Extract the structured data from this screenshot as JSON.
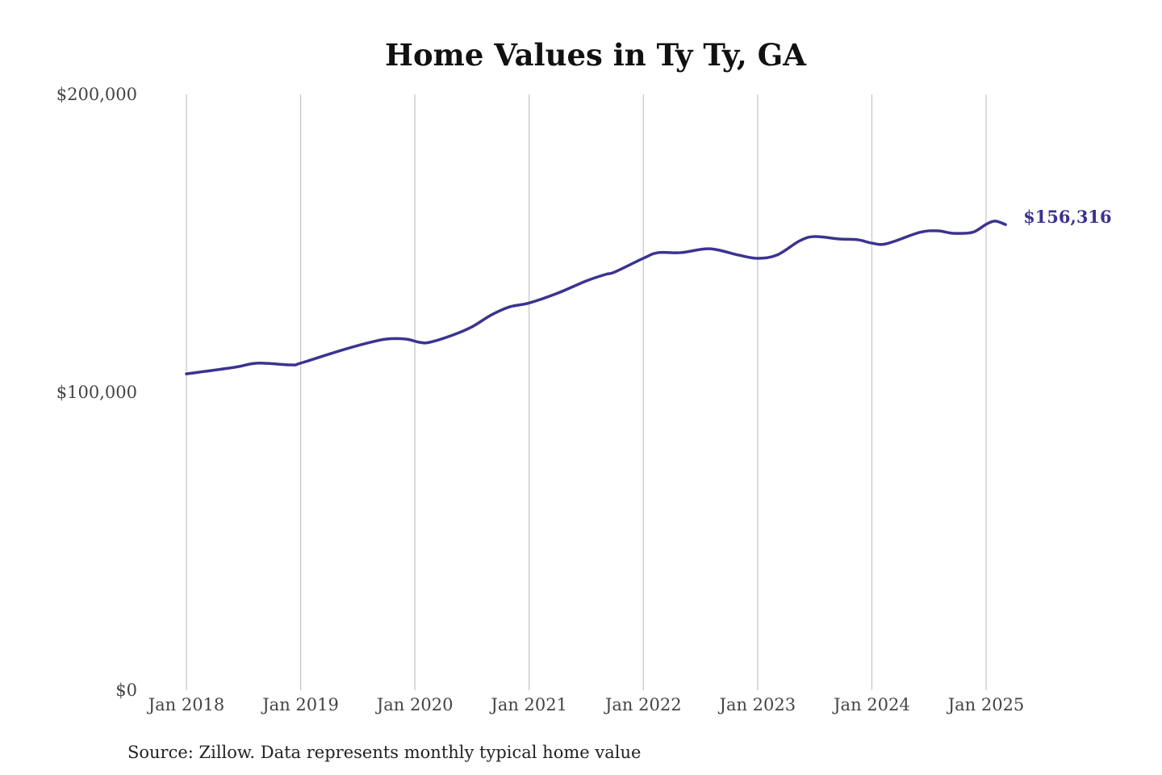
{
  "chart_data": {
    "type": "line",
    "title": "Home Values in Ty Ty, GA",
    "xlabel": "",
    "ylabel": "",
    "source": "Source: Zillow. Data represents monthly typical home value",
    "ylim": [
      0,
      200000
    ],
    "xlim": [
      2018.0,
      2025.17
    ],
    "y_ticks": [
      {
        "value": 0,
        "label": "$0"
      },
      {
        "value": 100000,
        "label": "$100,000"
      },
      {
        "value": 200000,
        "label": "$200,000"
      }
    ],
    "x_ticks": [
      {
        "value": 2018,
        "label": "Jan 2018"
      },
      {
        "value": 2019,
        "label": "Jan 2019"
      },
      {
        "value": 2020,
        "label": "Jan 2020"
      },
      {
        "value": 2021,
        "label": "Jan 2021"
      },
      {
        "value": 2022,
        "label": "Jan 2022"
      },
      {
        "value": 2023,
        "label": "Jan 2023"
      },
      {
        "value": 2024,
        "label": "Jan 2024"
      },
      {
        "value": 2025,
        "label": "Jan 2025"
      }
    ],
    "grid": "vertical",
    "series": [
      {
        "name": "Typical home value",
        "color": "#3b3390",
        "end_label": "$156,316",
        "x": [
          2018.0,
          2018.42,
          2018.62,
          2018.92,
          2019.0,
          2019.33,
          2019.58,
          2019.75,
          2019.92,
          2020.04,
          2020.13,
          2020.33,
          2020.5,
          2020.67,
          2020.83,
          2021.0,
          2021.25,
          2021.5,
          2021.67,
          2021.75,
          2022.0,
          2022.13,
          2022.33,
          2022.58,
          2022.83,
          2023.0,
          2023.17,
          2023.37,
          2023.5,
          2023.71,
          2023.88,
          2024.0,
          2024.13,
          2024.42,
          2024.58,
          2024.71,
          2024.88,
          2025.0,
          2025.08,
          2025.17
        ],
        "y": [
          106200,
          108400,
          109800,
          109200,
          109800,
          113800,
          116500,
          117900,
          117900,
          116800,
          116800,
          119200,
          122000,
          126000,
          128700,
          130000,
          133300,
          137400,
          139600,
          140400,
          145000,
          146900,
          146900,
          148200,
          146100,
          145000,
          146100,
          150900,
          152300,
          151500,
          151200,
          150100,
          149900,
          153700,
          154200,
          153400,
          153700,
          156400,
          157500,
          156316
        ]
      }
    ]
  }
}
